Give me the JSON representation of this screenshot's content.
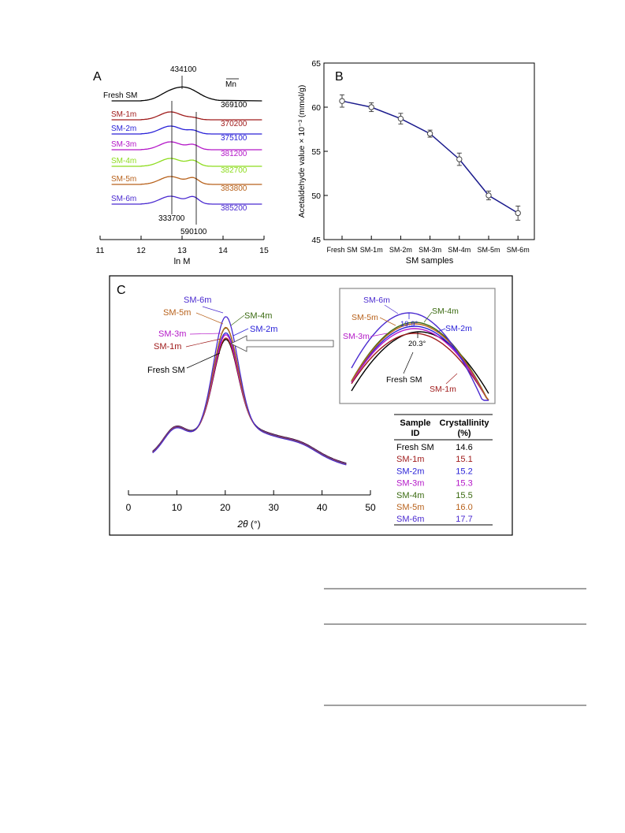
{
  "panel_a": {
    "letter": "A",
    "xlabel": "ln M",
    "xticks": [
      "11",
      "12",
      "13",
      "14",
      "15"
    ],
    "mn_header": "Mn",
    "peak_top": "434100",
    "peak_left": "333700",
    "peak_right": "590100",
    "samples": [
      {
        "name": "Fresh SM",
        "mn": "369100",
        "color": "#000000"
      },
      {
        "name": "SM-1m",
        "mn": "370200",
        "color": "#a01c1c"
      },
      {
        "name": "SM-2m",
        "mn": "375100",
        "color": "#2a22d8"
      },
      {
        "name": "SM-3m",
        "mn": "381200",
        "color": "#b418c8"
      },
      {
        "name": "SM-4m",
        "mn": "382700",
        "color": "#8edc1e"
      },
      {
        "name": "SM-5m",
        "mn": "383800",
        "color": "#b8621c"
      },
      {
        "name": "SM-6m",
        "mn": "385200",
        "color": "#4a2ad0"
      }
    ]
  },
  "panel_b": {
    "letter": "B",
    "xlabel": "SM samples",
    "ylabel": "Acetaldehyde value × 10⁻³ (mmol/g)",
    "yticks": [
      "45",
      "50",
      "55",
      "60",
      "65"
    ],
    "categories": [
      "Fresh SM",
      "SM-1m",
      "SM-2m",
      "SM-3m",
      "SM-4m",
      "SM-5m",
      "SM-6m"
    ],
    "line_color": "#1a1a8c"
  },
  "panel_c": {
    "letter": "C",
    "xlabel_sym": "2θ",
    "xlabel_unit": " (°)",
    "xticks": [
      "0",
      "10",
      "20",
      "30",
      "40",
      "50"
    ],
    "inset_peak_high": "19.9°",
    "inset_peak_low": "20.3°",
    "table": {
      "col1": [
        "Sample",
        "ID"
      ],
      "col2": [
        "Crystallinity",
        "(%)"
      ],
      "rows": [
        {
          "id": "Fresh SM",
          "value": "14.6",
          "color": "#000000"
        },
        {
          "id": "SM-1m",
          "value": "15.1",
          "color": "#a01c1c"
        },
        {
          "id": "SM-2m",
          "value": "15.2",
          "color": "#2a22d8"
        },
        {
          "id": "SM-3m",
          "value": "15.3",
          "color": "#b418c8"
        },
        {
          "id": "SM-4m",
          "value": "15.5",
          "color": "#3a6a10"
        },
        {
          "id": "SM-5m",
          "value": "16.0",
          "color": "#b8621c"
        },
        {
          "id": "SM-6m",
          "value": "17.7",
          "color": "#4a2ad0"
        }
      ]
    }
  },
  "chart_data": [
    {
      "type": "line",
      "title": "",
      "xlabel": "ln M",
      "ylabel": "",
      "xlim": [
        11,
        15
      ],
      "series": [
        {
          "name": "Fresh SM",
          "mn": 369100
        },
        {
          "name": "SM-1m",
          "mn": 370200
        },
        {
          "name": "SM-2m",
          "mn": 375100
        },
        {
          "name": "SM-3m",
          "mn": 381200
        },
        {
          "name": "SM-4m",
          "mn": 382700
        },
        {
          "name": "SM-5m",
          "mn": 383800
        },
        {
          "name": "SM-6m",
          "mn": 385200
        }
      ]
    },
    {
      "type": "line",
      "title": "",
      "xlabel": "SM samples",
      "ylabel": "Acetaldehyde value × 10⁻³ (mmol/g)",
      "ylim": [
        45,
        65
      ],
      "categories": [
        "Fresh SM",
        "SM-1m",
        "SM-2m",
        "SM-3m",
        "SM-4m",
        "SM-5m",
        "SM-6m"
      ],
      "values": [
        60.7,
        60.0,
        58.7,
        57.0,
        54.1,
        50.0,
        48.0
      ],
      "errors": [
        0.7,
        0.5,
        0.6,
        0.4,
        0.7,
        0.5,
        0.8
      ]
    },
    {
      "type": "line",
      "title": "",
      "xlabel": "2θ (°)",
      "xlim": [
        0,
        50
      ],
      "peak_positions": {
        "SM-6m": 19.9,
        "Fresh SM": 20.3
      },
      "series": [
        {
          "name": "Fresh SM",
          "crystallinity": 14.6
        },
        {
          "name": "SM-1m",
          "crystallinity": 15.1
        },
        {
          "name": "SM-2m",
          "crystallinity": 15.2
        },
        {
          "name": "SM-3m",
          "crystallinity": 15.3
        },
        {
          "name": "SM-4m",
          "crystallinity": 15.5
        },
        {
          "name": "SM-5m",
          "crystallinity": 16.0
        },
        {
          "name": "SM-6m",
          "crystallinity": 17.7
        }
      ]
    }
  ]
}
